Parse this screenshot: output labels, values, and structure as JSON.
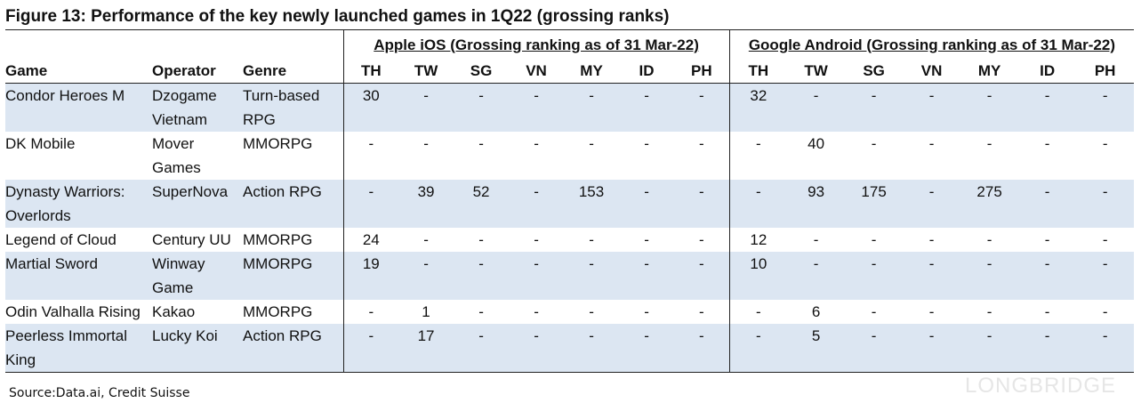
{
  "title": "Figure 13: Performance of the key newly launched games in 1Q22 (grossing ranks)",
  "table": {
    "groups": [
      "Apple iOS (Grossing ranking as of 31 Mar-22)",
      "Google Android (Grossing ranking as of 31 Mar-22)"
    ],
    "columns": [
      "Game",
      "Operator",
      "Genre"
    ],
    "ios_columns": [
      "TH",
      "TW",
      "SG",
      "VN",
      "MY",
      "ID",
      "PH"
    ],
    "android_columns": [
      "TH",
      "TW",
      "SG",
      "VN",
      "MY",
      "ID",
      "PH"
    ],
    "rows": [
      {
        "game": "Condor Heroes M",
        "operator": "Dzogame Vietnam",
        "genre": "Turn-based RPG",
        "ios": [
          30,
          "-",
          "-",
          "-",
          "-",
          "-",
          "-"
        ],
        "android": [
          32,
          "-",
          "-",
          "-",
          "-",
          "-",
          "-"
        ]
      },
      {
        "game": "DK Mobile",
        "operator": "Mover Games",
        "genre": "MMORPG",
        "ios": [
          "-",
          "-",
          "-",
          "-",
          "-",
          "-",
          "-"
        ],
        "android": [
          "-",
          40,
          "-",
          "-",
          "-",
          "-",
          "-"
        ]
      },
      {
        "game": "Dynasty Warriors: Overlords",
        "operator": "SuperNova",
        "genre": "Action RPG",
        "ios": [
          "-",
          39,
          52,
          "-",
          153,
          "-",
          "-"
        ],
        "android": [
          "-",
          93,
          175,
          "-",
          275,
          "-",
          "-"
        ]
      },
      {
        "game": "Legend of Cloud",
        "operator": "Century UU",
        "genre": "MMORPG",
        "ios": [
          24,
          "-",
          "-",
          "-",
          "-",
          "-",
          "-"
        ],
        "android": [
          12,
          "-",
          "-",
          "-",
          "-",
          "-",
          "-"
        ]
      },
      {
        "game": "Martial Sword",
        "operator": "Winway Game",
        "genre": "MMORPG",
        "ios": [
          19,
          "-",
          "-",
          "-",
          "-",
          "-",
          "-"
        ],
        "android": [
          10,
          "-",
          "-",
          "-",
          "-",
          "-",
          "-"
        ]
      },
      {
        "game": "Odin Valhalla Rising",
        "operator": "Kakao",
        "genre": "MMORPG",
        "ios": [
          "-",
          1,
          "-",
          "-",
          "-",
          "-",
          "-"
        ],
        "android": [
          "-",
          6,
          "-",
          "-",
          "-",
          "-",
          "-"
        ]
      },
      {
        "game": "Peerless Immortal King",
        "operator": "Lucky Koi",
        "genre": "Action RPG",
        "ios": [
          "-",
          17,
          "-",
          "-",
          "-",
          "-",
          "-"
        ],
        "android": [
          "-",
          5,
          "-",
          "-",
          "-",
          "-",
          "-"
        ]
      }
    ]
  },
  "source": "Source:Data.ai, Credit Suisse",
  "watermark": "LONGBRIDGE"
}
